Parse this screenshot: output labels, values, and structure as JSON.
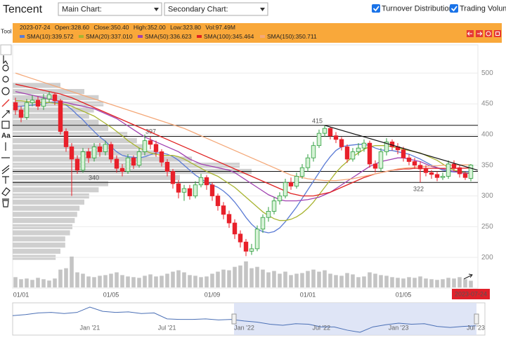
{
  "header": {
    "title": "Tencent",
    "main_chart": "Main Chart:",
    "secondary_chart": "Secondary Chart:",
    "turnover_distribution": "Turnover Distribution",
    "trading_volume": "Trading Volume"
  },
  "toolbar": {
    "label": "Tool",
    "text_tool": "Aa"
  },
  "info": {
    "date": "2023-07-24",
    "open": "Open:328.60",
    "close": "Close:350.40",
    "high": "High:352.00",
    "low": "Low:323.80",
    "vol": "Vol:97.49M"
  },
  "chart_data": {
    "type": "candlestick",
    "categories": [
      null,
      "01/01",
      null,
      null,
      null,
      null,
      null,
      null,
      null,
      null,
      null,
      null,
      null,
      null,
      null,
      null,
      null,
      "01/05",
      null,
      null,
      null,
      null,
      null,
      null,
      null,
      null,
      null,
      null,
      null,
      null,
      null,
      null,
      null,
      null,
      null,
      "01/09",
      null,
      null,
      null,
      null,
      null,
      null,
      null,
      null,
      null,
      null,
      null,
      null,
      null,
      null,
      null,
      null,
      "01/01",
      null,
      null,
      null,
      null,
      null,
      null,
      null,
      null,
      null,
      null,
      null,
      null,
      null,
      null,
      null,
      null,
      "01/05",
      null,
      null,
      null,
      null,
      null,
      null,
      null,
      null,
      null,
      null,
      null,
      null
    ],
    "candles": {
      "open": [
        452,
        440,
        428,
        452,
        456,
        446,
        458,
        465,
        455,
        405,
        380,
        360,
        342,
        372,
        362,
        380,
        372,
        384,
        360,
        345,
        340,
        362,
        350,
        372,
        390,
        384,
        372,
        355,
        340,
        320,
        306,
        312,
        300,
        318,
        330,
        318,
        300,
        284,
        270,
        256,
        238,
        225,
        210,
        214,
        246,
        265,
        275,
        292,
        300,
        322,
        316,
        332,
        346,
        362,
        382,
        402,
        410,
        398,
        392,
        380,
        360,
        372,
        378,
        386,
        352,
        345,
        372,
        388,
        380,
        375,
        362,
        356,
        350,
        344,
        338,
        335,
        330,
        332,
        352,
        346,
        336,
        328.6
      ],
      "high": [
        460,
        446,
        458,
        464,
        462,
        466,
        470,
        468,
        458,
        410,
        386,
        366,
        378,
        378,
        386,
        386,
        390,
        388,
        366,
        352,
        368,
        366,
        378,
        400,
        397,
        390,
        376,
        360,
        344,
        326,
        318,
        318,
        324,
        336,
        334,
        322,
        304,
        290,
        276,
        262,
        244,
        230,
        222,
        252,
        270,
        282,
        298,
        306,
        328,
        330,
        338,
        352,
        368,
        388,
        408,
        415,
        412,
        404,
        396,
        384,
        378,
        386,
        392,
        390,
        358,
        378,
        394,
        392,
        386,
        380,
        368,
        362,
        356,
        350,
        342,
        340,
        338,
        358,
        358,
        350,
        340,
        352
      ],
      "low": [
        432,
        420,
        424,
        446,
        440,
        440,
        452,
        448,
        400,
        372,
        300,
        336,
        338,
        354,
        356,
        364,
        366,
        354,
        338,
        332,
        336,
        344,
        346,
        366,
        376,
        364,
        348,
        332,
        312,
        296,
        292,
        294,
        296,
        314,
        310,
        292,
        276,
        262,
        248,
        230,
        216,
        202,
        204,
        210,
        240,
        258,
        270,
        286,
        296,
        310,
        312,
        328,
        340,
        356,
        378,
        396,
        392,
        386,
        374,
        354,
        356,
        366,
        372,
        346,
        338,
        340,
        366,
        374,
        368,
        356,
        350,
        344,
        322,
        332,
        328,
        324,
        326,
        328,
        340,
        330,
        326,
        323.8
      ],
      "close": [
        440,
        428,
        452,
        456,
        446,
        458,
        465,
        455,
        405,
        380,
        360,
        342,
        372,
        362,
        380,
        372,
        384,
        360,
        345,
        340,
        362,
        350,
        372,
        390,
        384,
        372,
        355,
        340,
        320,
        306,
        312,
        300,
        318,
        330,
        318,
        300,
        284,
        270,
        256,
        238,
        225,
        210,
        214,
        246,
        265,
        275,
        292,
        300,
        322,
        316,
        332,
        346,
        362,
        382,
        402,
        410,
        398,
        392,
        380,
        360,
        372,
        378,
        386,
        352,
        345,
        372,
        388,
        380,
        375,
        362,
        356,
        350,
        344,
        338,
        335,
        330,
        332,
        352,
        346,
        336,
        330,
        350.4
      ],
      "up_color": "#2e9e3e",
      "down_color": "#e8202a"
    },
    "volumes": [
      150,
      120,
      130,
      110,
      140,
      120,
      100,
      130,
      260,
      280,
      450,
      220,
      200,
      160,
      150,
      170,
      180,
      200,
      220,
      180,
      160,
      150,
      140,
      170,
      190,
      160,
      170,
      200,
      230,
      250,
      220,
      180,
      170,
      150,
      160,
      200,
      230,
      260,
      250,
      300,
      320,
      380,
      280,
      300,
      260,
      220,
      240,
      200,
      230,
      180,
      200,
      210,
      240,
      260,
      230,
      250,
      200,
      180,
      170,
      210,
      190,
      150,
      160,
      220,
      200,
      180,
      170,
      150,
      140,
      130,
      150,
      140,
      160,
      130,
      120,
      110,
      120,
      140,
      130,
      150,
      120,
      97.49
    ],
    "volume_color": "#c4c4c4",
    "series": [
      {
        "name": "SMA(10):339.572",
        "color": "#5b7bd5",
        "values": [
          445,
          446,
          447,
          448,
          449,
          450,
          452,
          453,
          452,
          448,
          441,
          432,
          424,
          414,
          405,
          396,
          389,
          380,
          372,
          366,
          364,
          363,
          362,
          364,
          367,
          370,
          370,
          368,
          364,
          358,
          350,
          342,
          334,
          328,
          322,
          318,
          314,
          308,
          300,
          290,
          278,
          265,
          254,
          246,
          242,
          240,
          242,
          248,
          258,
          270,
          282,
          296,
          310,
          324,
          338,
          352,
          364,
          374,
          380,
          382,
          383,
          384,
          384,
          382,
          378,
          375,
          374,
          374,
          372,
          370,
          368,
          364,
          360,
          355,
          350,
          346,
          342,
          340,
          339,
          339,
          339.5,
          339.572
        ]
      },
      {
        "name": "SMA(20):337.010",
        "color": "#a8b430",
        "values": [
          455,
          455,
          454,
          453,
          452,
          452,
          452,
          451,
          450,
          449,
          446,
          442,
          438,
          434,
          430,
          424,
          418,
          412,
          405,
          398,
          390,
          384,
          378,
          374,
          370,
          368,
          366,
          366,
          366,
          364,
          360,
          355,
          350,
          345,
          340,
          336,
          332,
          326,
          320,
          314,
          306,
          298,
          290,
          282,
          274,
          268,
          263,
          260,
          260,
          262,
          266,
          272,
          280,
          290,
          302,
          314,
          326,
          338,
          348,
          356,
          364,
          370,
          376,
          380,
          382,
          382,
          382,
          380,
          378,
          376,
          374,
          372,
          370,
          366,
          362,
          358,
          352,
          346,
          342,
          340,
          338,
          337.01
        ]
      },
      {
        "name": "SMA(50):336.623",
        "color": "#a040b0",
        "values": [
          470,
          468,
          466,
          464,
          462,
          460,
          458,
          456,
          454,
          452,
          450,
          448,
          446,
          444,
          442,
          438,
          434,
          430,
          426,
          420,
          414,
          408,
          402,
          396,
          392,
          388,
          384,
          380,
          376,
          372,
          366,
          360,
          356,
          352,
          350,
          348,
          346,
          344,
          342,
          338,
          332,
          326,
          320,
          314,
          308,
          302,
          298,
          294,
          292,
          292,
          292,
          293,
          294,
          296,
          298,
          302,
          306,
          312,
          318,
          324,
          330,
          336,
          342,
          348,
          352,
          356,
          358,
          360,
          362,
          362,
          360,
          358,
          356,
          352,
          348,
          346,
          344,
          342,
          340,
          338,
          337,
          336.623
        ]
      },
      {
        "name": "SMA(100):345.464",
        "color": "#e02020",
        "values": [
          482,
          480,
          478,
          476,
          474,
          472,
          470,
          468,
          466,
          463,
          460,
          456,
          452,
          448,
          444,
          440,
          436,
          432,
          428,
          424,
          420,
          416,
          412,
          408,
          404,
          400,
          396,
          392,
          388,
          384,
          380,
          376,
          372,
          368,
          364,
          360,
          356,
          352,
          348,
          344,
          340,
          336,
          332,
          328,
          324,
          320,
          316,
          312,
          308,
          304,
          302,
          300,
          300,
          300,
          302,
          304,
          306,
          310,
          314,
          318,
          322,
          326,
          330,
          333,
          336,
          338,
          340,
          342,
          343,
          344,
          344,
          345,
          345,
          345,
          345,
          345,
          345,
          345,
          345,
          345,
          345.3,
          345.464
        ]
      },
      {
        "name": "SMA(150):350.711",
        "color": "#f4a878",
        "values": [
          500,
          497,
          494,
          491,
          488,
          485,
          482,
          479,
          476,
          473,
          470,
          467,
          464,
          461,
          458,
          455,
          452,
          449,
          446,
          443,
          440,
          437,
          434,
          431,
          428,
          425,
          422,
          419,
          416,
          413,
          410,
          406,
          402,
          398,
          394,
          390,
          386,
          382,
          378,
          374,
          370,
          366,
          362,
          358,
          354,
          350,
          346,
          342,
          338,
          334,
          332,
          330,
          328,
          327,
          326,
          325,
          325,
          325,
          326,
          327,
          328,
          330,
          332,
          334,
          336,
          338,
          340,
          342,
          344,
          345,
          346,
          347,
          348,
          348,
          349,
          349,
          350,
          350,
          350,
          350.5,
          350.6,
          350.711
        ]
      }
    ],
    "turnover_distribution": {
      "prices": [
        200,
        210,
        220,
        230,
        240,
        250,
        260,
        270,
        280,
        290,
        300,
        310,
        320,
        330,
        340,
        350,
        360,
        370,
        380,
        390,
        400,
        410,
        420,
        430,
        440,
        450,
        460,
        470,
        480
      ],
      "values": [
        18,
        20,
        22,
        22,
        24,
        25,
        26,
        27,
        28,
        30,
        32,
        36,
        40,
        70,
        100,
        95,
        75,
        60,
        55,
        52,
        48,
        40,
        36,
        32,
        34,
        38,
        36,
        30,
        20
      ],
      "color": "#cfcfcf"
    },
    "levels": [
      415,
      397,
      340,
      322
    ],
    "trend_line": [
      415,
      342
    ],
    "ylim": [
      199,
      546
    ],
    "yticks": [
      200,
      250,
      300,
      350,
      400,
      450,
      500
    ],
    "grid": true,
    "navigator": {
      "categories": [
        null,
        null,
        null,
        null,
        null,
        null,
        "Jan '21",
        null,
        null,
        null,
        null,
        null,
        "Jul '21",
        null,
        null,
        null,
        null,
        null,
        "Jan '22",
        null,
        null,
        null,
        null,
        null,
        "Jul '22",
        null,
        null,
        null,
        null,
        null,
        "Jan '23",
        null,
        null,
        null,
        null,
        null,
        "Jul '23"
      ],
      "values": [
        540,
        560,
        590,
        600,
        580,
        600,
        700,
        620,
        600,
        610,
        580,
        590,
        480,
        470,
        470,
        480,
        460,
        470,
        440,
        420,
        380,
        360,
        390,
        380,
        330,
        330,
        270,
        230,
        330,
        370,
        400,
        380,
        390,
        340,
        320,
        340,
        350
      ],
      "color": "#4a6fb5"
    }
  }
}
